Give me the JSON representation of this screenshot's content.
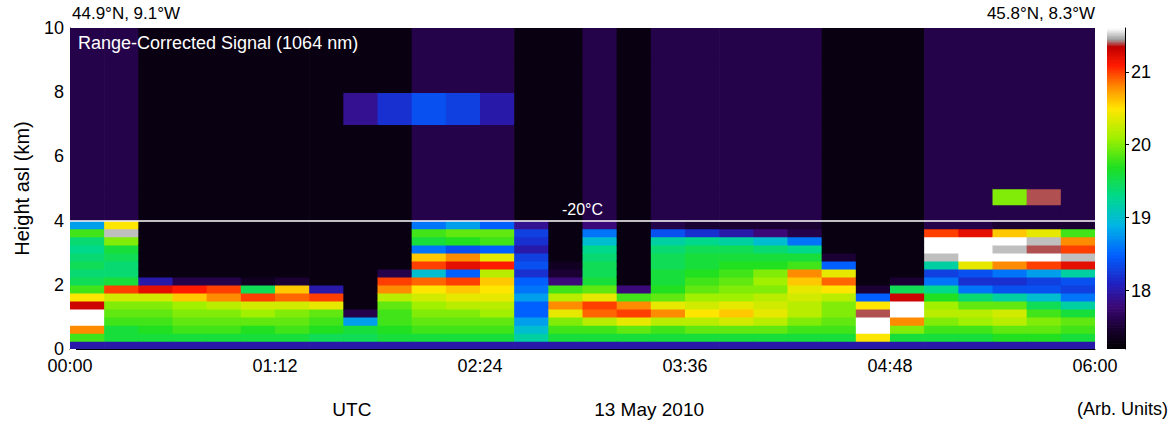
{
  "chart_data": {
    "type": "heatmap",
    "title": "Range-Corrected Signal (1064 nm)",
    "start_location": "44.9°N, 9.1°W",
    "end_location": "45.8°N, 8.3°W",
    "xlabel": "UTC",
    "date": "13 May 2010",
    "ylabel": "Height asl (km)",
    "xlim": [
      0,
      6
    ],
    "xticks": [
      {
        "value": 0,
        "label": "00:00"
      },
      {
        "value": 1.2,
        "label": "01:12"
      },
      {
        "value": 2.4,
        "label": "02:24"
      },
      {
        "value": 3.6,
        "label": "03:36"
      },
      {
        "value": 4.8,
        "label": "04:48"
      },
      {
        "value": 6,
        "label": "06:00"
      }
    ],
    "ylim": [
      0,
      10
    ],
    "yticks": [
      0,
      2,
      4,
      6,
      8,
      10
    ],
    "grid": false,
    "x_edges": [
      0,
      0.2,
      0.4,
      0.6,
      0.8,
      1,
      1.2,
      1.4,
      1.6,
      1.8,
      2,
      2.2,
      2.4,
      2.6,
      2.8,
      3,
      3.2,
      3.4,
      3.6,
      3.8,
      4,
      4.2,
      4.4,
      4.6,
      4.8,
      5,
      5.2,
      5.4,
      5.6,
      5.8,
      6
    ],
    "y_edges": [
      0,
      0.25,
      0.5,
      0.75,
      1,
      1.25,
      1.5,
      1.75,
      2,
      2.25,
      2.5,
      2.75,
      3,
      3.25,
      3.5,
      3.75,
      4,
      4.25,
      4.5,
      5,
      6,
      7,
      8,
      9,
      10
    ],
    "cells_by_time": [
      [
        18.0,
        19.8,
        20.8,
        21.6,
        21.6,
        21.3,
        20.5,
        19.8,
        19.5,
        19.4,
        19.5,
        19.4,
        19.3,
        19.4,
        19.8,
        18.8,
        17.6,
        17.6,
        17.6,
        17.6,
        17.6,
        17.6,
        17.6,
        17.6
      ],
      [
        18.0,
        19.6,
        19.6,
        19.8,
        19.9,
        20.0,
        20.3,
        21.0,
        19.6,
        19.4,
        19.4,
        19.5,
        19.6,
        20.0,
        21.5,
        20.5,
        17.6,
        17.6,
        17.6,
        17.6,
        17.6,
        17.6,
        17.6,
        17.6
      ],
      [
        18.0,
        19.6,
        19.7,
        19.8,
        19.9,
        20.0,
        20.3,
        21.2,
        18.0,
        17.3,
        17.3,
        17.3,
        17.3,
        17.3,
        17.3,
        17.3,
        17.3,
        17.3,
        17.3,
        17.3,
        17.3,
        17.3,
        17.3,
        17.3
      ],
      [
        18.0,
        19.6,
        19.8,
        19.9,
        20.0,
        20.1,
        20.6,
        21.1,
        17.6,
        17.3,
        17.3,
        17.3,
        17.3,
        17.3,
        17.3,
        17.3,
        17.3,
        17.3,
        17.3,
        17.3,
        17.3,
        17.3,
        17.3,
        17.3
      ],
      [
        18.0,
        19.6,
        19.8,
        19.9,
        20.0,
        20.2,
        20.8,
        21.0,
        17.6,
        17.3,
        17.3,
        17.3,
        17.3,
        17.3,
        17.3,
        17.3,
        17.3,
        17.3,
        17.3,
        17.3,
        17.3,
        17.3,
        17.3,
        17.3
      ],
      [
        18.0,
        19.6,
        19.7,
        19.9,
        20.1,
        20.3,
        21.0,
        19.5,
        17.4,
        17.3,
        17.3,
        17.3,
        17.3,
        17.3,
        17.3,
        17.3,
        17.3,
        17.3,
        17.3,
        17.3,
        17.3,
        17.3,
        17.3,
        17.3
      ],
      [
        18.0,
        19.6,
        19.8,
        19.9,
        20.0,
        20.3,
        20.9,
        20.6,
        17.5,
        17.3,
        17.3,
        17.3,
        17.3,
        17.3,
        17.3,
        17.3,
        17.3,
        17.3,
        17.3,
        17.3,
        17.3,
        17.3,
        17.3,
        17.3
      ],
      [
        18.0,
        19.5,
        19.7,
        19.8,
        19.9,
        20.4,
        21.0,
        18.0,
        17.3,
        17.3,
        17.3,
        17.3,
        17.3,
        17.3,
        17.3,
        17.3,
        17.3,
        17.3,
        17.3,
        17.3,
        17.3,
        17.3,
        17.3,
        17.3
      ],
      [
        18.0,
        19.5,
        19.6,
        18.8,
        17.6,
        17.3,
        17.3,
        17.3,
        17.3,
        17.3,
        17.3,
        17.3,
        17.3,
        17.3,
        17.3,
        17.3,
        17.3,
        17.3,
        17.3,
        17.3,
        17.3,
        17.9,
        17.3,
        17.3
      ],
      [
        18.0,
        19.6,
        19.7,
        19.8,
        19.8,
        19.9,
        20.2,
        20.8,
        21.0,
        17.6,
        17.3,
        17.3,
        17.3,
        17.3,
        17.3,
        17.3,
        17.3,
        17.3,
        17.3,
        17.3,
        17.3,
        18.2,
        17.3,
        17.3
      ],
      [
        18.0,
        19.6,
        19.8,
        19.9,
        20.0,
        20.1,
        20.3,
        20.5,
        20.9,
        19.0,
        21.0,
        20.6,
        18.6,
        19.6,
        19.8,
        18.6,
        17.6,
        17.6,
        17.6,
        17.6,
        17.6,
        18.4,
        17.6,
        17.6
      ],
      [
        18.0,
        19.6,
        19.8,
        19.9,
        20.0,
        20.2,
        20.4,
        20.6,
        21.0,
        18.5,
        21.2,
        20.8,
        18.4,
        19.7,
        19.9,
        18.8,
        17.6,
        17.6,
        17.6,
        17.6,
        17.6,
        18.3,
        17.6,
        17.6
      ],
      [
        18.0,
        19.6,
        19.8,
        19.9,
        20.1,
        20.2,
        20.4,
        20.5,
        20.6,
        20.2,
        21.1,
        20.4,
        18.5,
        19.8,
        19.9,
        18.5,
        17.6,
        17.6,
        17.6,
        17.6,
        17.6,
        18.0,
        17.6,
        17.6
      ],
      [
        18.0,
        19.2,
        19.0,
        18.8,
        18.5,
        18.5,
        18.8,
        18.6,
        18.5,
        18.2,
        18.4,
        18.3,
        18.0,
        18.2,
        18.3,
        17.9,
        17.3,
        17.3,
        17.3,
        17.3,
        17.3,
        17.3,
        17.3,
        17.3
      ],
      [
        18.0,
        19.6,
        19.8,
        20.0,
        20.4,
        20.8,
        20.2,
        19.8,
        17.8,
        17.5,
        17.4,
        17.3,
        17.3,
        17.3,
        17.3,
        17.3,
        17.3,
        17.3,
        17.3,
        17.3,
        17.3,
        17.3,
        17.3,
        17.3
      ],
      [
        18.0,
        19.6,
        19.8,
        20.2,
        20.9,
        21.0,
        20.4,
        19.9,
        19.6,
        19.5,
        19.5,
        19.4,
        19.3,
        19.0,
        18.6,
        17.8,
        17.6,
        17.6,
        17.6,
        17.6,
        17.6,
        17.6,
        17.6,
        17.6
      ],
      [
        18.0,
        19.6,
        19.9,
        20.4,
        21.0,
        20.8,
        19.8,
        17.8,
        17.3,
        17.3,
        17.3,
        17.3,
        17.3,
        17.3,
        17.3,
        17.3,
        17.3,
        17.3,
        17.3,
        17.3,
        17.3,
        17.3,
        17.3,
        17.3
      ],
      [
        18.0,
        19.6,
        19.8,
        20.2,
        20.8,
        20.4,
        19.9,
        19.7,
        19.6,
        19.6,
        19.5,
        19.5,
        19.4,
        19.2,
        18.4,
        17.6,
        17.6,
        17.6,
        17.6,
        17.6,
        17.6,
        17.6,
        17.6,
        17.6
      ],
      [
        18.0,
        19.6,
        19.9,
        20.2,
        20.5,
        20.3,
        20.1,
        19.9,
        19.8,
        19.7,
        19.6,
        19.6,
        19.5,
        19.3,
        18.2,
        17.5,
        17.6,
        17.6,
        17.6,
        17.6,
        17.6,
        17.6,
        17.6,
        17.6
      ],
      [
        18.0,
        19.6,
        19.9,
        20.3,
        20.6,
        20.4,
        20.1,
        20.0,
        19.9,
        19.8,
        19.7,
        19.6,
        19.5,
        19.2,
        18.0,
        17.5,
        17.6,
        17.6,
        17.6,
        17.6,
        17.6,
        17.6,
        17.6,
        17.6
      ],
      [
        18.0,
        19.6,
        19.9,
        20.2,
        20.4,
        20.3,
        20.2,
        20.0,
        20.1,
        20.0,
        19.7,
        19.6,
        19.4,
        19.0,
        17.8,
        17.5,
        17.6,
        17.6,
        17.6,
        17.6,
        17.6,
        17.6,
        17.6,
        17.6
      ],
      [
        18.0,
        19.6,
        19.8,
        20.0,
        20.2,
        20.2,
        20.3,
        20.4,
        20.6,
        20.8,
        19.8,
        19.6,
        19.3,
        18.6,
        17.6,
        17.5,
        17.6,
        17.6,
        17.6,
        17.6,
        17.6,
        17.6,
        17.6,
        17.6
      ],
      [
        18.0,
        19.6,
        19.8,
        19.9,
        20.0,
        20.0,
        20.2,
        20.5,
        20.9,
        20.4,
        18.5,
        17.5,
        17.3,
        17.3,
        17.3,
        17.3,
        17.3,
        17.3,
        17.3,
        17.3,
        17.3,
        17.3,
        17.3,
        17.3
      ],
      [
        18.0,
        20.5,
        21.6,
        21.6,
        21.4,
        20.5,
        18.5,
        17.5,
        17.3,
        17.3,
        17.3,
        17.3,
        17.3,
        17.3,
        17.3,
        17.3,
        17.3,
        17.3,
        17.3,
        17.3,
        17.3,
        17.3,
        17.3,
        17.3
      ],
      [
        18.0,
        19.6,
        20.0,
        20.8,
        21.6,
        21.6,
        21.3,
        19.5,
        17.5,
        17.3,
        17.3,
        17.3,
        17.3,
        17.3,
        17.3,
        17.3,
        17.3,
        17.3,
        17.3,
        17.3,
        17.3,
        17.3,
        17.3,
        17.3
      ],
      [
        18.0,
        19.6,
        19.8,
        20.0,
        20.2,
        20.1,
        19.7,
        19.3,
        18.6,
        18.3,
        19.2,
        21.5,
        21.6,
        21.6,
        21.0,
        17.6,
        17.6,
        17.6,
        17.6,
        17.6,
        17.6,
        17.6,
        17.6,
        17.6
      ],
      [
        18.0,
        19.6,
        19.8,
        20.1,
        20.2,
        19.9,
        19.4,
        18.6,
        18.2,
        18.4,
        20.4,
        21.6,
        21.6,
        21.6,
        21.2,
        17.6,
        17.6,
        17.6,
        17.6,
        17.6,
        17.6,
        17.6,
        17.6,
        17.6
      ],
      [
        18.0,
        19.7,
        19.9,
        20.2,
        20.3,
        19.9,
        19.2,
        18.4,
        18.2,
        18.6,
        20.8,
        21.6,
        21.5,
        21.6,
        20.6,
        17.5,
        17.6,
        17.6,
        20.0,
        17.6,
        17.6,
        17.6,
        17.6,
        17.6
      ],
      [
        18.0,
        19.7,
        19.9,
        20.0,
        19.8,
        19.5,
        19.0,
        18.4,
        18.3,
        18.8,
        21.0,
        21.6,
        21.4,
        21.5,
        20.4,
        17.5,
        17.6,
        17.6,
        21.4,
        17.6,
        17.6,
        17.6,
        17.6,
        17.6
      ],
      [
        18.0,
        19.6,
        19.8,
        19.9,
        19.6,
        19.2,
        18.6,
        18.3,
        18.4,
        19.2,
        21.2,
        21.5,
        21.0,
        20.8,
        19.8,
        17.5,
        17.6,
        17.6,
        17.6,
        17.6,
        17.6,
        17.6,
        17.6,
        17.6
      ]
    ],
    "colorbar": {
      "label": "(Arb. Units)",
      "range": [
        17.2,
        21.6
      ],
      "ticks": [
        18,
        19,
        20,
        21
      ]
    },
    "annotations": [
      {
        "text": "-20°C",
        "y": 4
      }
    ]
  }
}
